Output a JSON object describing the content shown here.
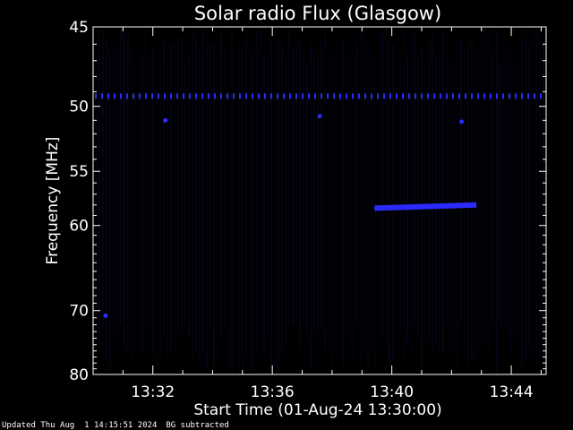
{
  "chart_data": {
    "type": "heatmap",
    "title": "Solar radio Flux (Glasgow)",
    "xlabel": "Start Time (01-Aug-24 13:30:00)",
    "ylabel": "Frequency [MHz]",
    "y_ticks": [
      45,
      50,
      55,
      60,
      70,
      80
    ],
    "y_scale": "reciprocal",
    "ylim": [
      45,
      80
    ],
    "x_ticks": [
      "13:32",
      "13:36",
      "13:40",
      "13:44"
    ],
    "xlim": [
      "13:30:00",
      "13:45:10"
    ],
    "grid": false,
    "colors": {
      "background": "#000000",
      "axes": "#ffffff",
      "signal": "#2a2aff",
      "noise": "#0a0a2e"
    },
    "features": [
      {
        "name": "",
        "kind": "band",
        "freq_mhz": 49.3,
        "t_start": "13:30:00",
        "t_end": "13:45:10"
      },
      {
        "name": "",
        "kind": "burst",
        "freq_start_mhz": 58.3,
        "freq_end_mhz": 58.0,
        "t_start": "13:39:25",
        "t_end": "13:42:50"
      },
      {
        "name": "",
        "kind": "point",
        "freq_mhz": 70.7,
        "time": "13:30:25"
      },
      {
        "name": "",
        "kind": "point",
        "freq_mhz": 51.0,
        "time": "13:32:25"
      },
      {
        "name": "",
        "kind": "point",
        "freq_mhz": 50.7,
        "time": "13:37:35"
      },
      {
        "name": "",
        "kind": "point",
        "freq_mhz": 51.1,
        "time": "13:42:20"
      }
    ]
  },
  "footer": {
    "updated": "Updated Thu Aug  1 14:15:51 2024",
    "bg_note": "BG subtracted"
  }
}
